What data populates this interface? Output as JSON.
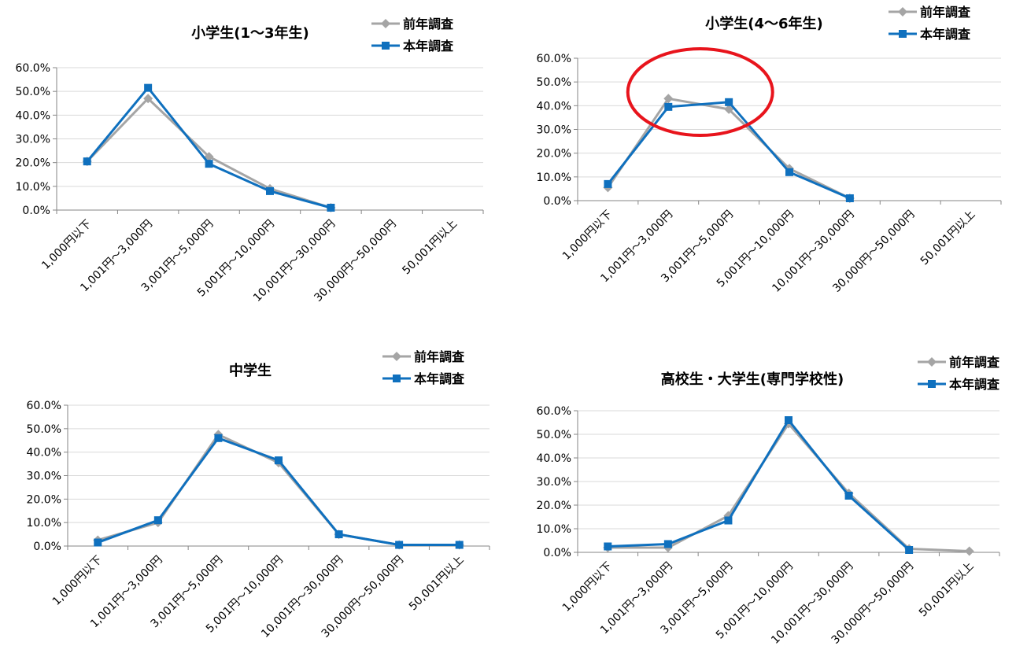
{
  "legend": {
    "prev_label": "前年調査",
    "curr_label": "本年調査"
  },
  "colors": {
    "prev": "#a5a5a5",
    "curr": "#0f70be",
    "grid": "#d9d9d9",
    "axis": "#868686",
    "highlight": "#e8141c"
  },
  "chart_data": [
    {
      "type": "line",
      "title": "小学生(1〜3年生)",
      "categories": [
        "1,000円以下",
        "1,001円〜3,000円",
        "3,001円〜5,000円",
        "5,001円〜10,000円",
        "10,001円〜30,000円",
        "30,000円〜50,000円",
        "50,001円以上"
      ],
      "ylim": [
        0,
        60
      ],
      "yticks": [
        "0.0%",
        "10.0%",
        "20.0%",
        "30.0%",
        "40.0%",
        "50.0%",
        "60.0%"
      ],
      "grid": true,
      "legend_position": "top-right",
      "series": [
        {
          "name": "前年調査",
          "marker": "diamond",
          "values": [
            20.5,
            47.0,
            22.5,
            9.0,
            1.0,
            null,
            null
          ]
        },
        {
          "name": "本年調査",
          "marker": "square",
          "values": [
            20.5,
            51.5,
            19.5,
            8.0,
            1.0,
            null,
            null
          ]
        }
      ]
    },
    {
      "type": "line",
      "title": "小学生(4〜6年生)",
      "categories": [
        "1,000円以下",
        "1,001円〜3,000円",
        "3,001円〜5,000円",
        "5,001円〜10,000円",
        "10,001円〜30,000円",
        "30,000円〜50,000円",
        "50,001円以上"
      ],
      "ylim": [
        0,
        60
      ],
      "yticks": [
        "0.0%",
        "10.0%",
        "20.0%",
        "30.0%",
        "40.0%",
        "50.0%",
        "60.0%"
      ],
      "grid": true,
      "legend_position": "top-right",
      "annotation": "red ellipse highlighting 1,001円〜3,000円 to 3,001円〜5,000円",
      "series": [
        {
          "name": "前年調査",
          "marker": "diamond",
          "values": [
            5.5,
            43.0,
            38.5,
            13.5,
            1.0,
            null,
            null
          ]
        },
        {
          "name": "本年調査",
          "marker": "square",
          "values": [
            7.0,
            39.5,
            41.5,
            12.0,
            1.0,
            null,
            null
          ]
        }
      ]
    },
    {
      "type": "line",
      "title": "中学生",
      "categories": [
        "1,000円以下",
        "1,001円〜3,000円",
        "3,001円〜5,000円",
        "5,001円〜10,000円",
        "10,001円〜30,000円",
        "30,000円〜50,000円",
        "50,001円以上"
      ],
      "ylim": [
        0,
        60
      ],
      "yticks": [
        "0.0%",
        "10.0%",
        "20.0%",
        "30.0%",
        "40.0%",
        "50.0%",
        "60.0%"
      ],
      "grid": true,
      "legend_position": "top-right",
      "series": [
        {
          "name": "前年調査",
          "marker": "diamond",
          "values": [
            2.5,
            10.0,
            47.5,
            35.5,
            5.0,
            0.5,
            0.5
          ]
        },
        {
          "name": "本年調査",
          "marker": "square",
          "values": [
            1.5,
            11.0,
            46.0,
            36.5,
            5.0,
            0.5,
            0.5
          ]
        }
      ]
    },
    {
      "type": "line",
      "title": "高校生・大学生(専門学校性)",
      "categories": [
        "1,000円以下",
        "1,001円〜3,000円",
        "3,001円〜5,000円",
        "5,001円〜10,000円",
        "10,001円〜30,000円",
        "30,000円〜50,000円",
        "50,001円以上"
      ],
      "ylim": [
        0,
        60
      ],
      "yticks": [
        "0.0%",
        "10.0%",
        "20.0%",
        "30.0%",
        "40.0%",
        "50.0%",
        "60.0%"
      ],
      "grid": true,
      "legend_position": "top-right",
      "series": [
        {
          "name": "前年調査",
          "marker": "diamond",
          "values": [
            2.0,
            2.0,
            15.5,
            54.5,
            25.0,
            1.5,
            0.5
          ]
        },
        {
          "name": "本年調査",
          "marker": "square",
          "values": [
            2.5,
            3.5,
            13.5,
            56.0,
            24.0,
            1.0,
            null
          ]
        }
      ]
    }
  ]
}
